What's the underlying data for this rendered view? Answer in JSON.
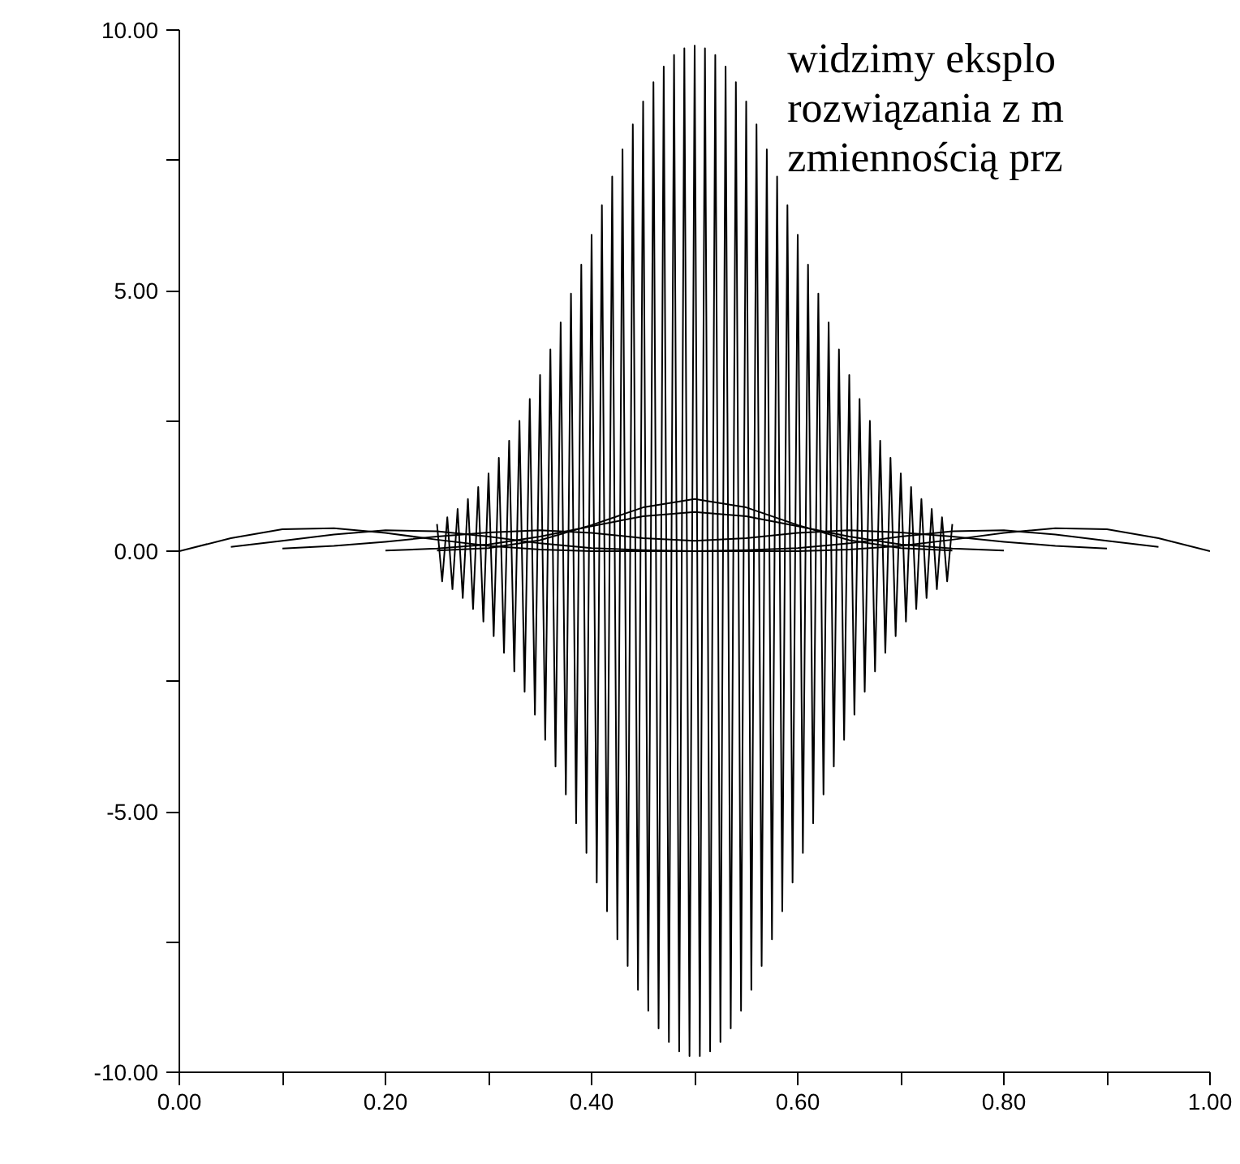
{
  "chart_data": {
    "type": "line",
    "xlim": [
      0,
      1
    ],
    "ylim": [
      -10,
      10
    ],
    "xticks": [
      {
        "value": 0,
        "label": "0.00"
      },
      {
        "value": 0.1,
        "label": null
      },
      {
        "value": 0.2,
        "label": "0.20"
      },
      {
        "value": 0.3,
        "label": null
      },
      {
        "value": 0.4,
        "label": "0.40"
      },
      {
        "value": 0.5,
        "label": null
      },
      {
        "value": 0.6,
        "label": "0.60"
      },
      {
        "value": 0.7,
        "label": null
      },
      {
        "value": 0.8,
        "label": "0.80"
      },
      {
        "value": 0.9,
        "label": null
      },
      {
        "value": 1,
        "label": "1.00"
      }
    ],
    "yticks": [
      {
        "value": -10,
        "label": "-10.00"
      },
      {
        "value": -7.5,
        "label": null
      },
      {
        "value": -5,
        "label": "-5.00"
      },
      {
        "value": -2.5,
        "label": null
      },
      {
        "value": 0,
        "label": "0.00"
      },
      {
        "value": 2.5,
        "label": null
      },
      {
        "value": 5,
        "label": "5.00"
      },
      {
        "value": 7.5,
        "label": null
      },
      {
        "value": 10,
        "label": "10.00"
      }
    ],
    "x": [
      0,
      0.05,
      0.1,
      0.15,
      0.2,
      0.25,
      0.3,
      0.35,
      0.4,
      0.45,
      0.5,
      0.55,
      0.6,
      0.65,
      0.7,
      0.75,
      0.8,
      0.85,
      0.9,
      0.95,
      1
    ],
    "grid": false,
    "marker": "none",
    "line_style": "solid",
    "annotations": [
      "widzimy eksplo\nrozwiązania z m\nzmiennością prz"
    ],
    "series": [
      {
        "color": "#000000",
        "x": [
          0.25,
          0.255,
          0.26,
          0.265,
          0.27,
          0.275,
          0.28,
          0.285,
          0.29,
          0.295,
          0.3,
          0.305,
          0.31,
          0.315,
          0.32,
          0.325,
          0.33,
          0.335,
          0.34,
          0.345,
          0.35,
          0.355,
          0.36,
          0.365,
          0.37,
          0.375,
          0.38,
          0.385,
          0.39,
          0.395,
          0.4,
          0.405,
          0.41,
          0.415,
          0.42,
          0.425,
          0.43,
          0.435,
          0.44,
          0.445,
          0.45,
          0.455,
          0.46,
          0.465,
          0.47,
          0.475,
          0.48,
          0.485,
          0.49,
          0.495,
          0.5,
          0.505,
          0.51,
          0.515,
          0.52,
          0.525,
          0.53,
          0.535,
          0.54,
          0.545,
          0.55,
          0.555,
          0.56,
          0.565,
          0.57,
          0.575,
          0.58,
          0.585,
          0.59,
          0.595,
          0.6,
          0.605,
          0.61,
          0.615,
          0.62,
          0.625,
          0.63,
          0.635,
          0.64,
          0.645,
          0.65,
          0.655,
          0.66,
          0.665,
          0.67,
          0.675,
          0.68,
          0.685,
          0.69,
          0.695,
          0.7,
          0.705,
          0.71,
          0.715,
          0.72,
          0.725,
          0.73,
          0.735,
          0.74,
          0.745,
          0.75
        ],
        "values": [
          0.52,
          -0.58,
          0.65,
          -0.73,
          0.81,
          -0.9,
          1.0,
          -1.11,
          1.23,
          -1.35,
          1.49,
          -1.63,
          1.79,
          -1.95,
          2.12,
          -2.31,
          2.5,
          -2.7,
          2.92,
          -3.14,
          3.38,
          -3.62,
          3.87,
          -4.13,
          4.39,
          -4.67,
          4.94,
          -5.22,
          5.5,
          -5.79,
          6.07,
          -6.36,
          6.64,
          -6.91,
          7.19,
          -7.45,
          7.71,
          -7.96,
          8.19,
          -8.42,
          8.63,
          -8.82,
          9.0,
          -9.16,
          9.3,
          -9.42,
          9.52,
          -9.6,
          9.65,
          -9.69,
          9.7,
          -9.69,
          9.65,
          -9.6,
          9.52,
          -9.42,
          9.3,
          -9.16,
          9.0,
          -8.82,
          8.63,
          -8.42,
          8.19,
          -7.96,
          7.71,
          -7.45,
          7.19,
          -6.91,
          6.64,
          -6.36,
          6.07,
          -5.79,
          5.5,
          -5.22,
          4.94,
          -4.67,
          4.39,
          -4.13,
          3.87,
          -3.62,
          3.38,
          -3.14,
          2.92,
          -2.7,
          2.5,
          -2.31,
          2.12,
          -1.95,
          1.79,
          -1.63,
          1.49,
          -1.35,
          1.23,
          -1.11,
          1.0,
          -0.9,
          0.81,
          -0.73,
          0.65,
          -0.58,
          0.52
        ]
      },
      {
        "color": "#000000",
        "x": [
          0.25,
          0.3,
          0.35,
          0.4,
          0.45,
          0.5,
          0.55,
          0.6,
          0.65,
          0.7,
          0.75
        ],
        "values": [
          0.01,
          0.06,
          0.21,
          0.5,
          0.84,
          1.0,
          0.84,
          0.5,
          0.21,
          0.06,
          0.01
        ]
      },
      {
        "color": "#000000",
        "x": [
          0.2,
          0.25,
          0.3,
          0.35,
          0.4,
          0.45,
          0.5,
          0.55,
          0.6,
          0.65,
          0.7,
          0.75,
          0.8
        ],
        "values": [
          0.01,
          0.05,
          0.13,
          0.28,
          0.48,
          0.67,
          0.75,
          0.67,
          0.48,
          0.28,
          0.13,
          0.05,
          0.01
        ]
      },
      {
        "color": "#000000",
        "values": [
          0,
          0.25,
          0.42,
          0.44,
          0.35,
          0.22,
          0.1,
          0.03,
          0,
          0,
          0,
          0,
          0,
          0.03,
          0.1,
          0.22,
          0.35,
          0.44,
          0.42,
          0.25,
          0
        ]
      },
      {
        "color": "#000000",
        "x": [
          0.05,
          0.1,
          0.15,
          0.2,
          0.25,
          0.3,
          0.35,
          0.4,
          0.45,
          0.5,
          0.55,
          0.6,
          0.65,
          0.7,
          0.75,
          0.8,
          0.85,
          0.9,
          0.95
        ],
        "values": [
          0.08,
          0.2,
          0.32,
          0.4,
          0.38,
          0.28,
          0.15,
          0.06,
          0.02,
          0,
          0.02,
          0.06,
          0.15,
          0.28,
          0.38,
          0.4,
          0.32,
          0.2,
          0.08
        ]
      },
      {
        "color": "#000000",
        "x": [
          0.1,
          0.15,
          0.2,
          0.25,
          0.3,
          0.35,
          0.4,
          0.45,
          0.5,
          0.55,
          0.6,
          0.65,
          0.7,
          0.75,
          0.8,
          0.85,
          0.9
        ],
        "values": [
          0.05,
          0.1,
          0.18,
          0.28,
          0.36,
          0.4,
          0.35,
          0.25,
          0.2,
          0.25,
          0.35,
          0.4,
          0.36,
          0.28,
          0.18,
          0.1,
          0.05
        ]
      }
    ]
  }
}
